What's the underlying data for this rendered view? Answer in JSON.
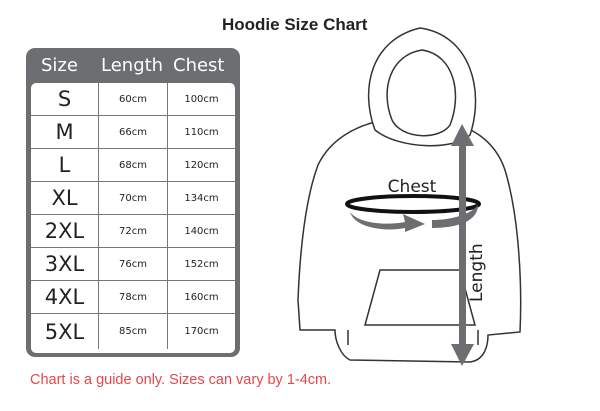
{
  "title": "Hoodie Size Chart",
  "table": {
    "headers": [
      "Size",
      "Length",
      "Chest"
    ],
    "rows": [
      {
        "size": "S",
        "length": "60cm",
        "chest": "100cm"
      },
      {
        "size": "M",
        "length": "66cm",
        "chest": "110cm"
      },
      {
        "size": "L",
        "length": "68cm",
        "chest": "120cm"
      },
      {
        "size": "XL",
        "length": "70cm",
        "chest": "134cm"
      },
      {
        "size": "2XL",
        "length": "72cm",
        "chest": "140cm"
      },
      {
        "size": "3XL",
        "length": "76cm",
        "chest": "152cm"
      },
      {
        "size": "4XL",
        "length": "78cm",
        "chest": "160cm"
      },
      {
        "size": "5XL",
        "length": "85cm",
        "chest": "170cm"
      }
    ]
  },
  "diagram": {
    "chest_label": "Chest",
    "length_label": "Length"
  },
  "note": "Chart is a guide only. Sizes can vary by 1-4cm.",
  "colors": {
    "table_frame": "#6d6e71",
    "note": "#e8474a",
    "arrow": "#6d6e71"
  }
}
